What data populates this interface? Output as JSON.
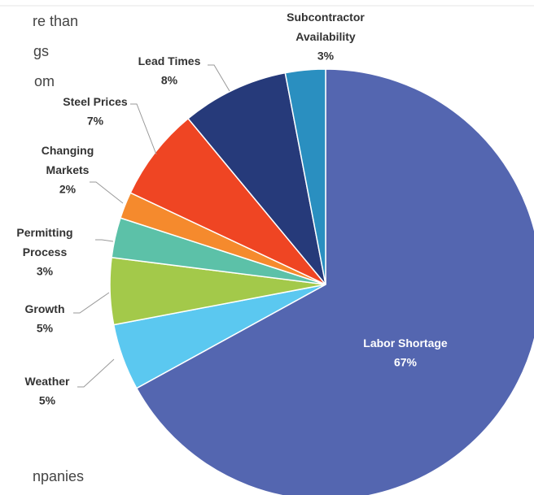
{
  "page_text": [
    "re than",
    "gs",
    "om",
    "npanies"
  ],
  "chart_data": {
    "type": "pie",
    "categories": [
      "Labor Shortage",
      "Weather",
      "Growth",
      "Permitting\nProcess",
      "Changing\nMarkets",
      "Steel Prices",
      "Lead Times",
      "Subcontractor\nAvailability"
    ],
    "values": [
      67,
      5,
      5,
      3,
      2,
      7,
      8,
      3
    ],
    "value_labels": [
      "67%",
      "5%",
      "5%",
      "3%",
      "2%",
      "7%",
      "8%",
      "3%"
    ],
    "colors": [
      "#5466b0",
      "#5bc8f0",
      "#a3c94a",
      "#5cc1a8",
      "#f58a2d",
      "#ef4523",
      "#263a7a",
      "#2a8fc0"
    ]
  }
}
